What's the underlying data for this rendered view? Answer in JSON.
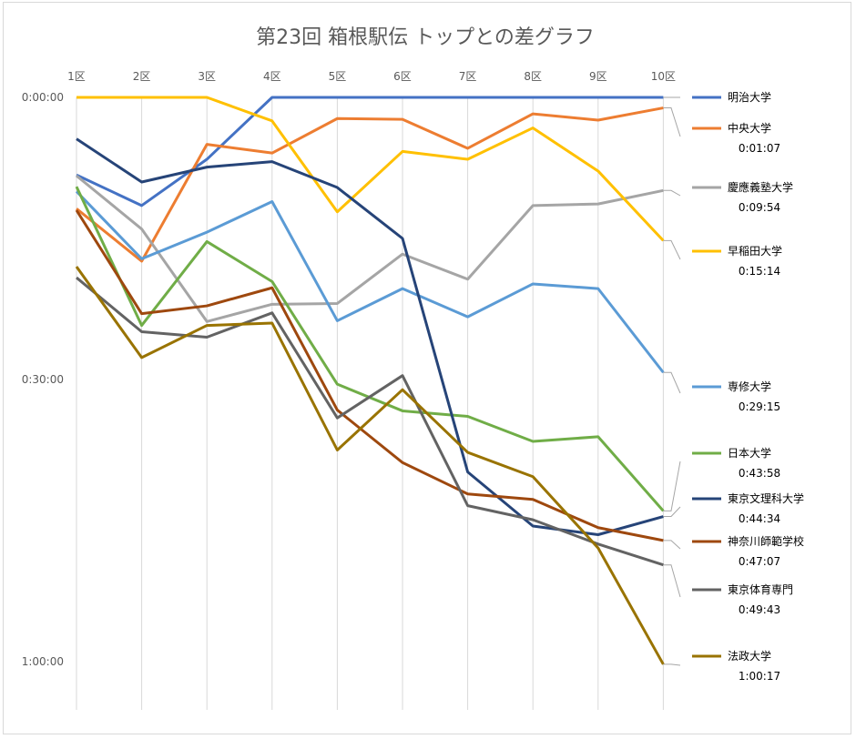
{
  "chart_data": {
    "type": "line",
    "title": "第23回 箱根駅伝 トップとの差グラフ",
    "xlabel": "",
    "ylabel": "",
    "x_axis_position": "top",
    "y_axis_inverted": true,
    "categories": [
      "1区",
      "2区",
      "3区",
      "4区",
      "5区",
      "6区",
      "7区",
      "8区",
      "9区",
      "10区"
    ],
    "y_tick_labels": [
      "0:00:00",
      "0:30:00",
      "1:00:00"
    ],
    "y_ticks_seconds": [
      0,
      1800,
      3600
    ],
    "ylim_seconds": [
      0,
      3900
    ],
    "gridlines": "vertical",
    "legend_position": "right",
    "series": [
      {
        "name": "明治大学",
        "color": "#4472C4",
        "final_gap": "",
        "values": [
          495,
          690,
          395,
          0,
          0,
          0,
          0,
          0,
          0,
          0
        ]
      },
      {
        "name": "中央大学",
        "color": "#ED7D31",
        "final_gap": "0:01:07",
        "values": [
          710,
          1045,
          300,
          355,
          135,
          140,
          325,
          105,
          145,
          67
        ]
      },
      {
        "name": "慶應義塾大学",
        "color": "#A5A5A5",
        "final_gap": "0:09:54",
        "values": [
          500,
          840,
          1430,
          1320,
          1315,
          1000,
          1160,
          690,
          680,
          594
        ]
      },
      {
        "name": "早稲田大学",
        "color": "#FFC000",
        "final_gap": "0:15:14",
        "values": [
          0,
          0,
          0,
          150,
          730,
          345,
          395,
          195,
          470,
          914
        ]
      },
      {
        "name": "専修大学",
        "color": "#5B9BD5",
        "final_gap": "0:29:15",
        "values": [
          600,
          1030,
          860,
          665,
          1425,
          1220,
          1400,
          1190,
          1220,
          1755
        ]
      },
      {
        "name": "日本大学",
        "color": "#70AD47",
        "final_gap": "0:43:58",
        "values": [
          570,
          1455,
          920,
          1175,
          1830,
          2000,
          2035,
          2195,
          2165,
          2638
        ]
      },
      {
        "name": "東京文理科大学",
        "color": "#264478",
        "final_gap": "0:44:34",
        "values": [
          265,
          540,
          445,
          410,
          575,
          900,
          2390,
          2735,
          2790,
          2674
        ]
      },
      {
        "name": "神奈川師範学校",
        "color": "#9E480E",
        "final_gap": "0:47:07",
        "values": [
          720,
          1380,
          1330,
          1215,
          1995,
          2330,
          2530,
          2565,
          2745,
          2827
        ]
      },
      {
        "name": "東京体育専門",
        "color": "#636363",
        "final_gap": "0:49:43",
        "values": [
          1150,
          1495,
          1530,
          1375,
          2045,
          1775,
          2605,
          2695,
          2850,
          2983
        ]
      },
      {
        "name": "法政大学",
        "color": "#997300",
        "final_gap": "1:00:17",
        "values": [
          1080,
          1660,
          1455,
          1440,
          2250,
          1865,
          2265,
          2420,
          2875,
          3617
        ]
      }
    ]
  }
}
